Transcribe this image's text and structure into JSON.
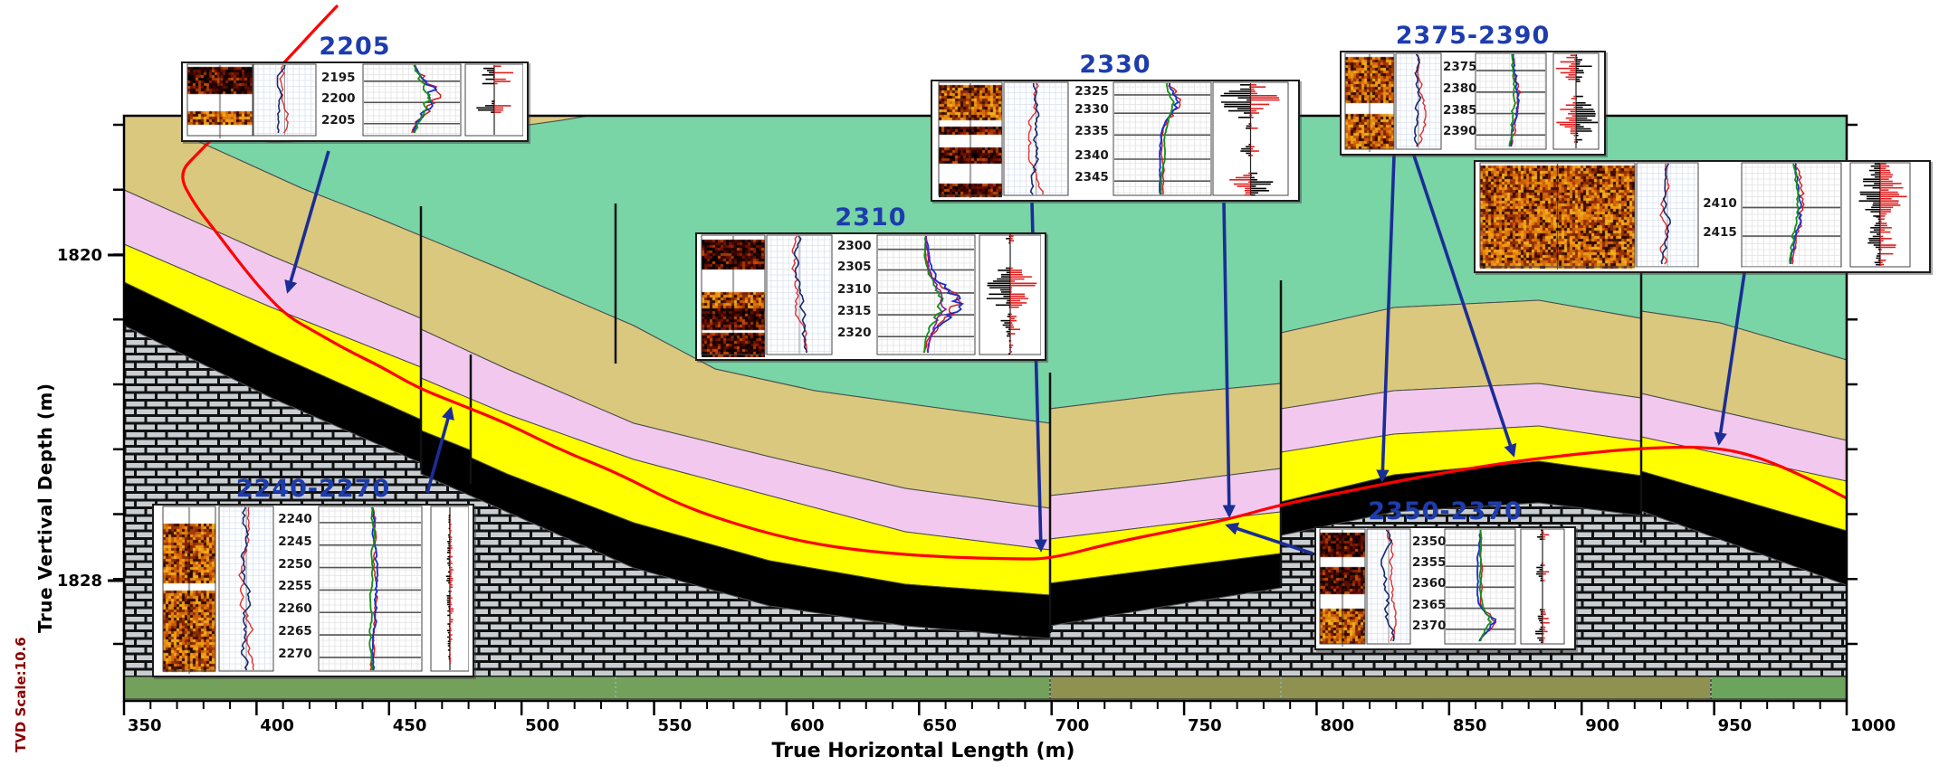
{
  "axes": {
    "x": {
      "title": "True Horizontal Length (m)",
      "tick_labels": [
        "350",
        "400",
        "450",
        "500",
        "550",
        "600",
        "650",
        "700",
        "750",
        "800",
        "850",
        "900",
        "950",
        "1000"
      ],
      "range": [
        350,
        1000
      ],
      "minor_step": 10
    },
    "y": {
      "title": "True Vertival Depth (m)",
      "scale_note": "TVD Scale:10.6",
      "tick_labels": [
        "1820",
        "1828"
      ]
    }
  },
  "panels": [
    {
      "id": "2205",
      "title": "2205",
      "depth_labels": [
        "2195",
        "2200",
        "2205"
      ]
    },
    {
      "id": "2310",
      "title": "2310",
      "depth_labels": [
        "2300",
        "2305",
        "2310",
        "2315",
        "2320"
      ]
    },
    {
      "id": "2330",
      "title": "2330",
      "depth_labels": [
        "2325",
        "2330",
        "2335",
        "2340",
        "2345"
      ]
    },
    {
      "id": "2375-2390",
      "title": "2375-2390",
      "depth_labels": [
        "2375",
        "2380",
        "2385",
        "2390"
      ]
    },
    {
      "id": "2410",
      "title": "",
      "depth_labels": [
        "2410",
        "2415"
      ]
    },
    {
      "id": "2240-2270",
      "title": "2240-2270",
      "depth_labels": [
        "2240",
        "2245",
        "2250",
        "2255",
        "2260",
        "2265",
        "2270"
      ]
    },
    {
      "id": "2350-2370",
      "title": "2350-2370",
      "depth_labels": [
        "2350",
        "2355",
        "2360",
        "2365",
        "2370"
      ]
    }
  ],
  "colors": {
    "trajectory": "#ff0000",
    "arrow": "#1b2d96",
    "panel_title": "#1d3cad",
    "layer_green": "#79d4a6",
    "layer_tan": "#d9c87e",
    "layer_pink": "#f2c8ee",
    "layer_yellow": "#ffff00",
    "layer_black": "#000000",
    "layer_limestone_brick": "#c9ced2",
    "basement_strip": [
      "#73a15b",
      "#8e9150",
      "#6ba45c"
    ]
  }
}
